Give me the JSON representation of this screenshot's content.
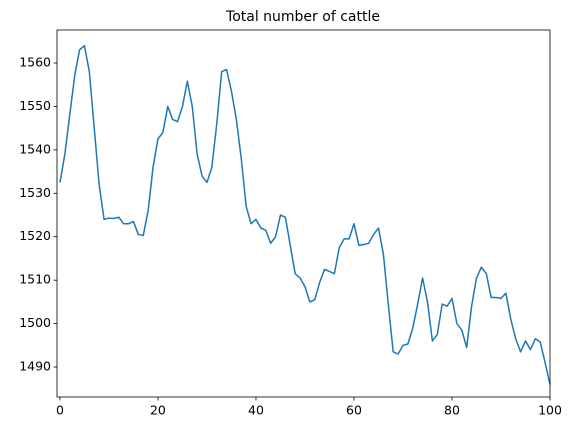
{
  "chart_data": {
    "type": "line",
    "title": "Total number of cattle",
    "x": [
      0,
      1,
      2,
      3,
      4,
      5,
      6,
      7,
      8,
      9,
      10,
      11,
      12,
      13,
      14,
      15,
      16,
      17,
      18,
      19,
      20,
      21,
      22,
      23,
      24,
      25,
      26,
      27,
      28,
      29,
      30,
      31,
      32,
      33,
      34,
      35,
      36,
      37,
      38,
      39,
      40,
      41,
      42,
      43,
      44,
      45,
      46,
      47,
      48,
      49,
      50,
      51,
      52,
      53,
      54,
      55,
      56,
      57,
      58,
      59,
      60,
      61,
      62,
      63,
      64,
      65,
      66,
      67,
      68,
      69,
      70,
      71,
      72,
      73,
      74,
      75,
      76,
      77,
      78,
      79,
      80,
      81,
      82,
      83,
      84,
      85,
      86,
      87,
      88,
      89,
      90,
      91,
      92,
      93,
      94,
      95,
      96,
      97,
      98,
      99,
      100
    ],
    "values": [
      1532.5,
      1539,
      1548,
      1557,
      1563,
      1564,
      1558,
      1545,
      1532,
      1524,
      1524.3,
      1524.2,
      1524.5,
      1523,
      1523,
      1523.5,
      1520.5,
      1520.3,
      1526,
      1536,
      1542.5,
      1544,
      1550,
      1547,
      1546.5,
      1550,
      1555.8,
      1550,
      1539,
      1534,
      1532.5,
      1536,
      1546,
      1558,
      1558.5,
      1553.5,
      1547,
      1538,
      1527,
      1523,
      1524,
      1522,
      1521.5,
      1518.5,
      1520,
      1525,
      1524.5,
      1518,
      1511.5,
      1510.5,
      1508.5,
      1505,
      1505.5,
      1509.5,
      1512.5,
      1512,
      1511.5,
      1517.5,
      1519.5,
      1519.5,
      1523,
      1518,
      1518.2,
      1518.5,
      1520.5,
      1522,
      1516,
      1504.5,
      1493.5,
      1493,
      1495,
      1495.3,
      1499,
      1504.5,
      1510.5,
      1505,
      1496,
      1497.5,
      1504.5,
      1504,
      1505.8,
      1500,
      1498.5,
      1494.5,
      1504,
      1510.5,
      1513,
      1511.5,
      1506,
      1506,
      1505.8,
      1507,
      1501,
      1496.5,
      1493.5,
      1496,
      1494,
      1496.5,
      1495.8,
      1491,
      1486
    ],
    "color": "#1f77b4",
    "xlim": [
      -0.6,
      100
    ],
    "xticks": [
      0,
      20,
      40,
      60,
      80,
      100
    ],
    "ylim": [
      1483.1,
      1567.6
    ],
    "yticks": [
      1490,
      1500,
      1510,
      1520,
      1530,
      1540,
      1550,
      1560
    ]
  }
}
